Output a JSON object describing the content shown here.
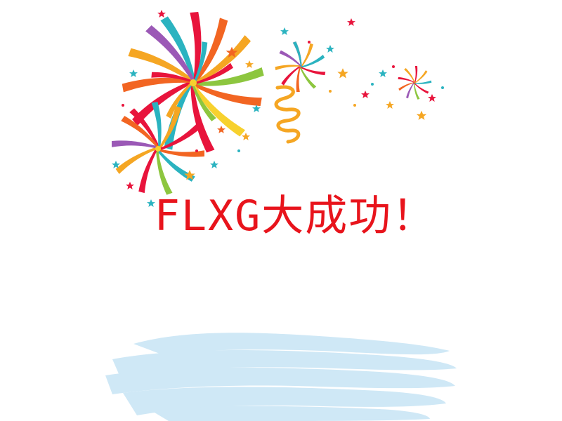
{
  "headline": {
    "text": "FLXG大成功！",
    "color": "#e8141c"
  },
  "decorations": {
    "fireworks_icon": "fireworks-burst-icon",
    "streamer_icon": "spiral-streamer-icon",
    "star_icon": "confetti-star-icon",
    "cloud_icon": "brush-stroke-cloud-icon",
    "palette": [
      "#e8143c",
      "#f5a623",
      "#2bb3c0",
      "#8dc63f",
      "#f26522",
      "#9b59b6",
      "#f7d12e"
    ],
    "cloud_color": "#cfe8f6"
  }
}
